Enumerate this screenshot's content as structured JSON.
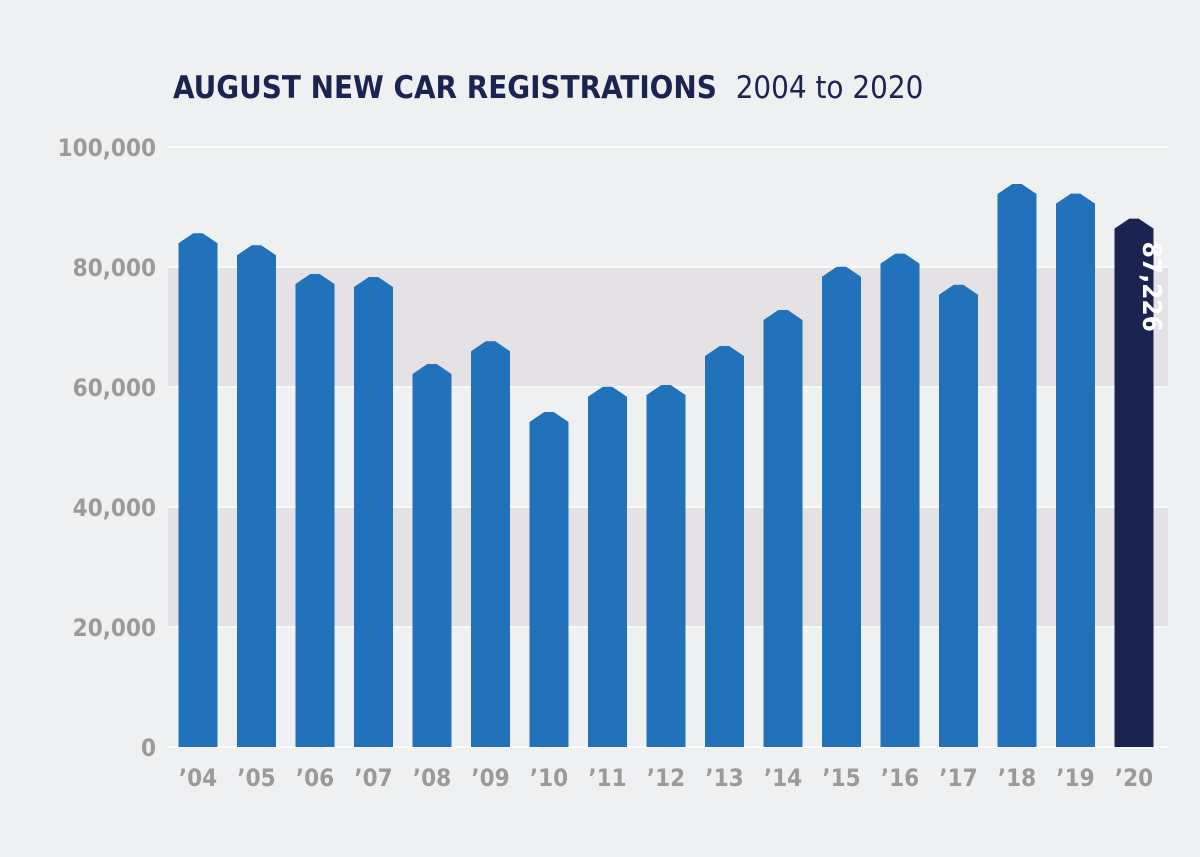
{
  "chart_data": {
    "type": "bar",
    "title": "AUGUST NEW CAR REGISTRATIONS",
    "subtitle": "2004 to 2020",
    "xlabel": "",
    "ylabel": "",
    "ylim": [
      0,
      100000
    ],
    "yticks": [
      0,
      20000,
      40000,
      60000,
      80000,
      100000
    ],
    "ytick_labels": [
      "0",
      "20,000",
      "40,000",
      "60,000",
      "80,000",
      "100,000"
    ],
    "categories": [
      "’04",
      "’05",
      "’06",
      "’07",
      "’08",
      "’09",
      "’10",
      "’11",
      "’12",
      "’13",
      "’14",
      "’15",
      "’16",
      "’17",
      "’18",
      "’19",
      "’20"
    ],
    "values": [
      84800,
      82800,
      78000,
      77500,
      63000,
      66800,
      55000,
      59200,
      59500,
      66000,
      72000,
      79200,
      81400,
      76200,
      93000,
      91400,
      87226
    ],
    "highlight_index": 16,
    "highlight_label": "87,226",
    "grid": true,
    "colors": {
      "bar": "#2172bb",
      "highlight": "#1b2350",
      "band": "#e4e2e4",
      "background": "#eff0f2",
      "gridline": "#ffffff"
    }
  }
}
